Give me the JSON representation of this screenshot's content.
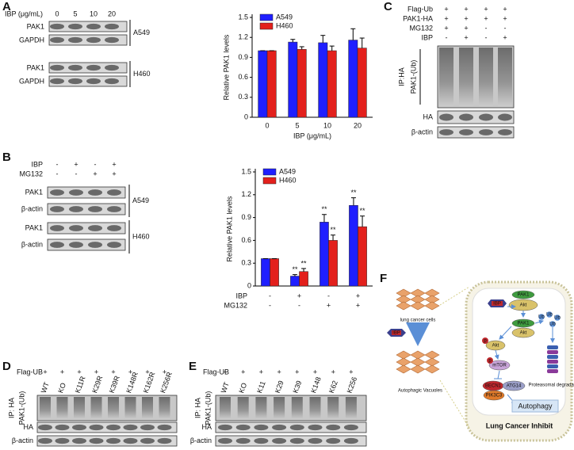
{
  "chart_data": [
    {
      "type": "bar",
      "categories": [
        "0",
        "5",
        "10",
        "20"
      ],
      "x_label": "IBP (μg/mL)",
      "y_label": "Relative PAK1 levels",
      "ylim": [
        0,
        1.5
      ],
      "yticks": [
        0,
        0.3,
        0.6,
        0.9,
        1.2,
        1.5
      ],
      "legend": "top-left",
      "series": [
        {
          "name": "A549",
          "color": "#1f1fff",
          "values": [
            1.0,
            1.13,
            1.12,
            1.16
          ],
          "errors": [
            0,
            0.04,
            0.11,
            0.17
          ]
        },
        {
          "name": "H460",
          "color": "#e3201c",
          "values": [
            1.0,
            1.02,
            1.0,
            1.04
          ],
          "errors": [
            0,
            0.04,
            0.07,
            0.15
          ]
        }
      ]
    },
    {
      "type": "bar",
      "categories": [
        null,
        null,
        null,
        null
      ],
      "y_label": "Relative PAK1 levels",
      "ylim": [
        0,
        1.5
      ],
      "yticks": [
        0,
        0.3,
        0.6,
        0.9,
        1.2,
        1.5
      ],
      "legend": "top-left",
      "series": [
        {
          "name": "A549",
          "color": "#1f1fff",
          "values": [
            0.36,
            0.13,
            0.84,
            1.06
          ],
          "errors": [
            0,
            0.02,
            0.1,
            0.1
          ],
          "significance": [
            null,
            "**",
            "**",
            "**"
          ]
        },
        {
          "name": "H460",
          "color": "#e3201c",
          "values": [
            0.36,
            0.19,
            0.6,
            0.78
          ],
          "errors": [
            0,
            0.04,
            0.07,
            0.14
          ],
          "significance": [
            null,
            "**",
            "**",
            "**"
          ]
        }
      ],
      "conditions": [
        {
          "name": "IBP",
          "signs": [
            "-",
            "+",
            "-",
            "+"
          ]
        },
        {
          "name": "MG132",
          "signs": [
            "-",
            "-",
            "+",
            "+"
          ]
        }
      ]
    }
  ],
  "panels": {
    "A": {
      "letter": "A",
      "ibp_label": "IBP (μg/mL)",
      "doses": [
        "0",
        "5",
        "10",
        "20"
      ],
      "rows": [
        "PAK1",
        "GAPDH",
        "PAK1",
        "GAPDH"
      ],
      "cell_lines": [
        "A549",
        "H460"
      ]
    },
    "B": {
      "letter": "B",
      "treatments": [
        {
          "name": "IBP",
          "signs": [
            "-",
            "+",
            "-",
            "+"
          ]
        },
        {
          "name": "MG132",
          "signs": [
            "-",
            "-",
            "+",
            "+"
          ]
        }
      ],
      "rows": [
        "PAK1",
        "β-actin",
        "PAK1",
        "β-actin"
      ],
      "cell_lines": [
        "A549",
        "H460"
      ]
    },
    "C": {
      "letter": "C",
      "treatments": [
        {
          "name": "Flag-Ub",
          "signs": [
            "+",
            "+",
            "+",
            "+"
          ]
        },
        {
          "name": "PAK1-HA",
          "signs": [
            "+",
            "+",
            "+",
            "+"
          ]
        },
        {
          "name": "MG132",
          "signs": [
            "+",
            "+",
            "-",
            "-"
          ]
        },
        {
          "name": "IBP",
          "signs": [
            "-",
            "+",
            "-",
            "+"
          ]
        }
      ],
      "ip": "IP:HA",
      "ub": "PAK1-(Ub)",
      "rows": [
        "HA",
        "β-actin"
      ]
    },
    "D": {
      "letter": "D",
      "flag": "Flag-UB",
      "signs": [
        "+",
        "+",
        "+",
        "+",
        "+",
        "+",
        "+",
        "+"
      ],
      "lanes": [
        "WT",
        "KO",
        "K11R",
        "K29R",
        "K39R",
        "K148R",
        "K162R",
        "K256R"
      ],
      "ip": "IP: HA",
      "ub": "PAK1-(Ub)",
      "rows": [
        "HA",
        "β-actin"
      ]
    },
    "E": {
      "letter": "E",
      "flag": "Flag-UB",
      "signs": [
        "+",
        "+",
        "+",
        "+",
        "+",
        "+",
        "+",
        "+"
      ],
      "lanes": [
        "WT",
        "KO",
        "K11",
        "K29",
        "K39",
        "K148",
        "K62",
        "K256"
      ],
      "ip": "IP: HA",
      "ub": "PAK1-(Ub)",
      "rows": [
        "HA",
        "β-actin"
      ]
    },
    "F": {
      "letter": "F",
      "cells": "lung cancer cells",
      "ibp": "IBP",
      "vacuoles": "Autophagic Vacuoles",
      "nodes": [
        "PAK1",
        "Akt",
        "IBP",
        "PAK1",
        "Akt",
        "Akt",
        "mTOR",
        "BECN1",
        "ATG14",
        "PIK3C3"
      ],
      "phospho": "p",
      "ub": "Ub",
      "autophagy": "Autophagy",
      "degradation": "Proteasomal degradation",
      "footer": "Lung Cancer Inhibit"
    }
  }
}
